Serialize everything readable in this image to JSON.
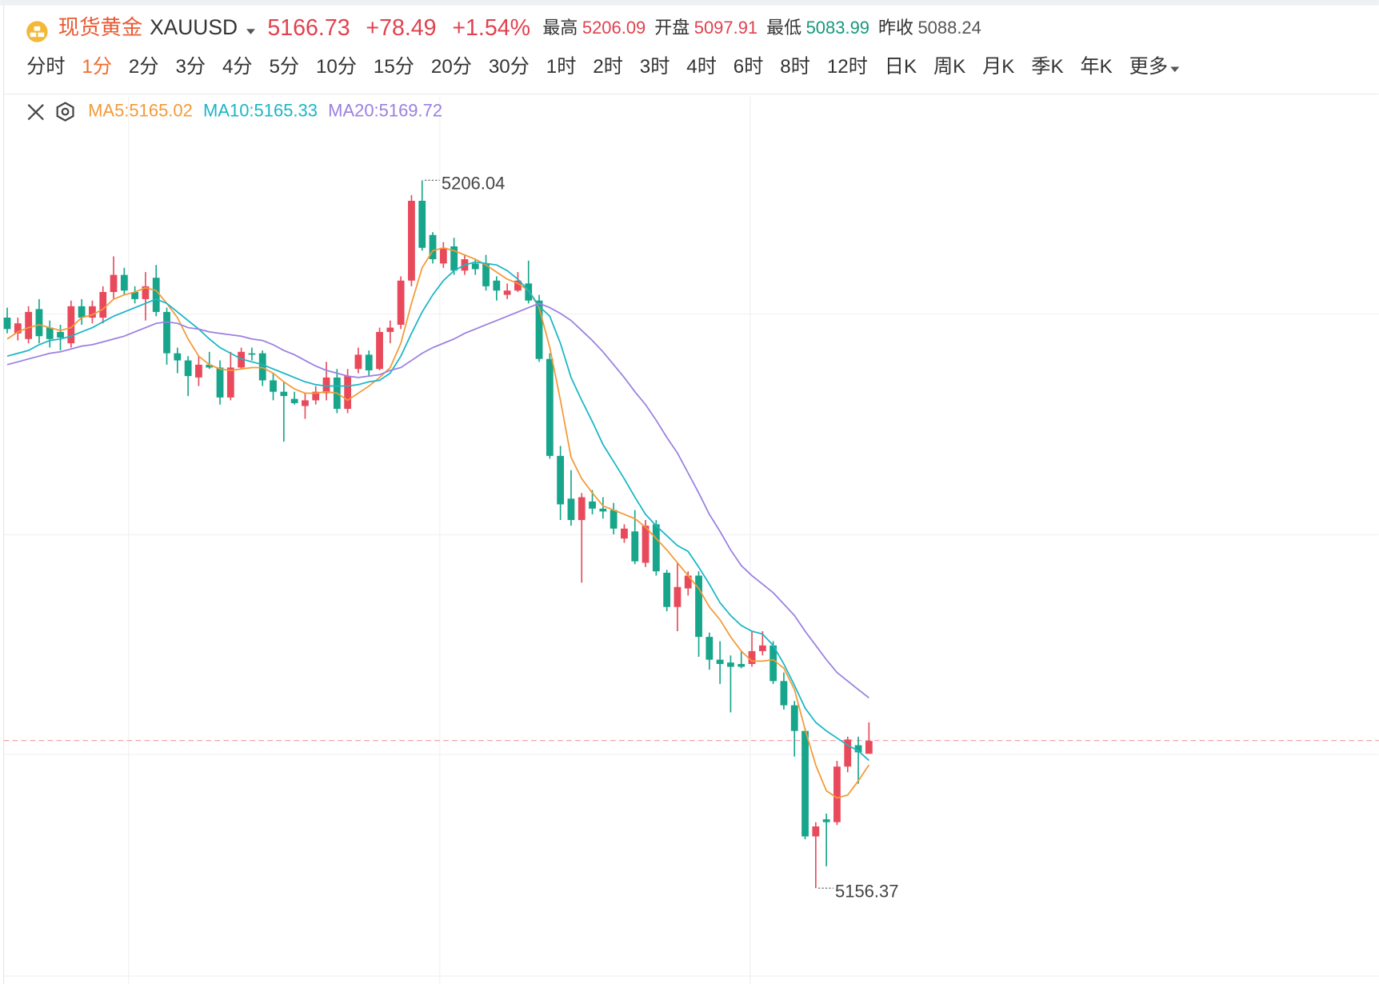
{
  "header": {
    "name": "现货黄金",
    "symbol": "XAUUSD",
    "price": 5166.73,
    "change": "+78.49",
    "change_pct": "+1.54%",
    "stats": [
      {
        "label": "最高",
        "value": 5206.09,
        "color": "#e0424f"
      },
      {
        "label": "开盘",
        "value": 5097.91,
        "color": "#e0424f"
      },
      {
        "label": "最低",
        "value": 5083.99,
        "color": "#16987c"
      },
      {
        "label": "昨收",
        "value": 5088.24,
        "color": "#555555"
      }
    ]
  },
  "tabs": [
    "分时",
    "1分",
    "2分",
    "3分",
    "4分",
    "5分",
    "10分",
    "15分",
    "20分",
    "30分",
    "1时",
    "2时",
    "3时",
    "4时",
    "6时",
    "8时",
    "12时",
    "日K",
    "周K",
    "月K",
    "季K",
    "年K",
    "更多"
  ],
  "active_tab": 1,
  "chart_data": {
    "type": "candlestick",
    "up_color": "#e84a5b",
    "down_color": "#17a58b",
    "legend_separator": ":",
    "high_label": 5206.04,
    "low_label": 5156.37,
    "candles": [
      [
        5196.4,
        5197.1,
        5195.3,
        5195.6
      ],
      [
        5195.3,
        5196.4,
        5194.8,
        5196.0
      ],
      [
        5194.9,
        5197.2,
        5194.6,
        5196.8
      ],
      [
        5197.0,
        5197.7,
        5194.6,
        5195.1
      ],
      [
        5195.7,
        5196.2,
        5194.3,
        5194.9
      ],
      [
        5195.4,
        5195.9,
        5194.1,
        5195.0
      ],
      [
        5194.6,
        5197.6,
        5194.3,
        5197.2
      ],
      [
        5197.2,
        5197.7,
        5195.9,
        5196.4
      ],
      [
        5196.4,
        5197.6,
        5196.0,
        5197.2
      ],
      [
        5196.4,
        5198.6,
        5196.0,
        5198.2
      ],
      [
        5198.2,
        5200.7,
        5197.7,
        5199.4
      ],
      [
        5199.4,
        5199.9,
        5198.0,
        5198.3
      ],
      [
        5198.2,
        5198.6,
        5197.4,
        5197.7
      ],
      [
        5197.7,
        5199.6,
        5196.2,
        5198.6
      ],
      [
        5199.2,
        5200.1,
        5196.5,
        5196.8
      ],
      [
        5196.8,
        5197.1,
        5193.1,
        5193.9
      ],
      [
        5193.9,
        5194.3,
        5192.5,
        5193.4
      ],
      [
        5193.4,
        5193.7,
        5190.9,
        5192.3
      ],
      [
        5192.2,
        5193.7,
        5191.6,
        5193.1
      ],
      [
        5193.1,
        5194.0,
        5192.8,
        5192.9
      ],
      [
        5192.9,
        5193.4,
        5190.3,
        5190.8
      ],
      [
        5190.8,
        5194.0,
        5190.6,
        5192.9
      ],
      [
        5192.9,
        5194.3,
        5192.8,
        5194.0
      ],
      [
        5193.9,
        5194.3,
        5193.4,
        5193.8
      ],
      [
        5193.9,
        5194.1,
        5191.6,
        5192.0
      ],
      [
        5192.0,
        5192.5,
        5190.6,
        5191.2
      ],
      [
        5191.2,
        5191.9,
        5187.7,
        5190.9
      ],
      [
        5190.7,
        5191.2,
        5190.3,
        5190.4
      ],
      [
        5190.2,
        5191.1,
        5189.3,
        5190.6
      ],
      [
        5190.6,
        5191.6,
        5190.3,
        5191.2
      ],
      [
        5191.1,
        5193.3,
        5190.6,
        5192.2
      ],
      [
        5192.2,
        5192.8,
        5189.7,
        5190.0
      ],
      [
        5190.0,
        5192.8,
        5189.7,
        5192.3
      ],
      [
        5192.8,
        5194.3,
        5192.5,
        5193.8
      ],
      [
        5193.8,
        5194.1,
        5192.3,
        5192.7
      ],
      [
        5192.8,
        5195.7,
        5192.7,
        5195.4
      ],
      [
        5195.4,
        5196.2,
        5194.6,
        5195.7
      ],
      [
        5195.9,
        5199.3,
        5195.6,
        5199.0
      ],
      [
        5199.0,
        5205.0,
        5198.6,
        5204.6
      ],
      [
        5204.6,
        5206.04,
        5201.1,
        5201.3
      ],
      [
        5202.2,
        5202.4,
        5200.2,
        5200.5
      ],
      [
        5200.2,
        5201.7,
        5199.9,
        5201.3
      ],
      [
        5201.4,
        5202.0,
        5199.4,
        5199.7
      ],
      [
        5199.7,
        5200.8,
        5199.4,
        5200.5
      ],
      [
        5200.2,
        5200.5,
        5199.4,
        5199.8
      ],
      [
        5200.2,
        5200.8,
        5198.3,
        5198.6
      ],
      [
        5199.0,
        5199.3,
        5197.6,
        5198.3
      ],
      [
        5198.0,
        5198.8,
        5197.7,
        5198.3
      ],
      [
        5198.3,
        5199.6,
        5198.2,
        5199.0
      ],
      [
        5198.8,
        5200.4,
        5197.4,
        5197.6
      ],
      [
        5197.6,
        5198.0,
        5193.3,
        5193.5
      ],
      [
        5193.5,
        5193.9,
        5186.5,
        5186.7
      ],
      [
        5186.7,
        5187.4,
        5182.2,
        5183.3
      ],
      [
        5183.7,
        5185.7,
        5181.8,
        5182.2
      ],
      [
        5182.2,
        5184.1,
        5177.8,
        5183.8
      ],
      [
        5183.5,
        5184.3,
        5182.6,
        5183.0
      ],
      [
        5183.0,
        5183.8,
        5182.3,
        5182.8
      ],
      [
        5182.9,
        5183.4,
        5181.2,
        5181.6
      ],
      [
        5180.9,
        5181.9,
        5180.6,
        5181.6
      ],
      [
        5181.4,
        5182.9,
        5179.1,
        5179.3
      ],
      [
        5179.2,
        5182.2,
        5178.9,
        5181.8
      ],
      [
        5181.9,
        5182.2,
        5178.3,
        5178.6
      ],
      [
        5178.5,
        5178.7,
        5175.8,
        5176.1
      ],
      [
        5176.1,
        5179.2,
        5174.4,
        5177.5
      ],
      [
        5177.4,
        5178.6,
        5176.9,
        5178.3
      ],
      [
        5178.3,
        5178.6,
        5172.6,
        5174.0
      ],
      [
        5174.0,
        5174.3,
        5171.7,
        5172.4
      ],
      [
        5172.4,
        5173.7,
        5170.7,
        5172.1
      ],
      [
        5172.2,
        5172.7,
        5168.7,
        5171.9
      ],
      [
        5172.1,
        5173.0,
        5171.8,
        5171.9
      ],
      [
        5172.1,
        5174.4,
        5171.9,
        5173.0
      ],
      [
        5173.0,
        5174.4,
        5172.7,
        5173.4
      ],
      [
        5173.4,
        5173.7,
        5170.7,
        5170.9
      ],
      [
        5170.9,
        5171.5,
        5168.9,
        5169.2
      ],
      [
        5169.2,
        5169.5,
        5165.6,
        5167.4
      ],
      [
        5167.4,
        5167.6,
        5159.8,
        5160.0
      ],
      [
        5160.0,
        5161.0,
        5156.37,
        5160.7
      ],
      [
        5161.2,
        5161.6,
        5157.9,
        5161.0
      ],
      [
        5161.0,
        5165.3,
        5160.8,
        5164.9
      ],
      [
        5164.9,
        5167.0,
        5164.5,
        5166.8
      ],
      [
        5166.4,
        5167.0,
        5163.7,
        5165.9
      ],
      [
        5165.8,
        5168.0,
        5165.8,
        5166.7
      ]
    ],
    "series": [
      {
        "name": "MA5",
        "color": "#f39a38",
        "values": [
          5194.9,
          5195.4,
          5195.7,
          5195.9,
          5195.7,
          5195.5,
          5195.7,
          5196.4,
          5196.6,
          5197.0,
          5197.7,
          5198.0,
          5198.2,
          5198.5,
          5198.3,
          5197.4,
          5196.4,
          5194.9,
          5193.7,
          5193.1,
          5192.8,
          5192.7,
          5192.8,
          5192.9,
          5192.9,
          5192.5,
          5191.9,
          5191.4,
          5191.1,
          5191.1,
          5191.2,
          5191.1,
          5190.6,
          5191.1,
          5191.6,
          5192.2,
          5192.9,
          5194.6,
          5197.4,
          5199.9,
          5201.1,
          5201.3,
          5201.1,
          5200.8,
          5200.5,
          5200.1,
          5199.6,
          5199.1,
          5198.8,
          5198.3,
          5197.1,
          5194.3,
          5190.6,
          5186.6,
          5185.1,
          5184.1,
          5183.2,
          5182.9,
          5182.6,
          5182.3,
          5181.7,
          5180.9,
          5180.1,
          5179.2,
          5178.3,
          5177.4,
          5176.1,
          5175.2,
          5174.0,
          5173.0,
          5172.3,
          5172.3,
          5172.4,
          5171.8,
          5170.3,
          5167.5,
          5165.0,
          5163.2,
          5162.7,
          5162.9,
          5163.9,
          5165.02
        ]
      },
      {
        "name": "MA10",
        "color": "#1ab6c6",
        "values": [
          5193.7,
          5193.9,
          5194.1,
          5194.5,
          5194.8,
          5194.9,
          5195.1,
          5195.4,
          5195.7,
          5196.1,
          5196.5,
          5196.8,
          5197.1,
          5197.4,
          5197.7,
          5197.4,
          5196.8,
          5196.2,
          5195.6,
          5194.9,
          5194.3,
          5193.9,
          5193.5,
          5193.3,
          5193.1,
          5192.8,
          5192.5,
          5192.2,
          5191.9,
          5191.7,
          5191.6,
          5191.6,
          5191.6,
          5191.7,
          5191.9,
          5192.0,
          5192.5,
          5193.7,
          5195.3,
          5196.8,
          5198.0,
          5199.0,
          5199.7,
          5200.1,
          5200.3,
          5200.2,
          5200.1,
          5199.7,
          5199.1,
          5198.3,
          5197.2,
          5196.5,
          5194.6,
          5192.2,
          5190.6,
          5189.1,
          5187.5,
          5186.3,
          5185.1,
          5183.8,
          5182.6,
          5181.8,
          5181.1,
          5180.4,
          5180.0,
          5178.9,
          5177.7,
          5176.4,
          5175.5,
          5174.8,
          5174.4,
          5174.2,
          5173.4,
          5172.1,
          5170.6,
          5169.0,
          5168.0,
          5167.4,
          5166.9,
          5166.4,
          5166.0,
          5165.33
        ]
      },
      {
        "name": "MA20",
        "color": "#9b80e0",
        "values": [
          5193.1,
          5193.3,
          5193.5,
          5193.7,
          5193.9,
          5194.0,
          5194.2,
          5194.4,
          5194.5,
          5194.7,
          5194.9,
          5195.1,
          5195.4,
          5195.7,
          5196.0,
          5196.1,
          5196.0,
          5195.7,
          5195.6,
          5195.4,
          5195.3,
          5195.2,
          5195.1,
          5194.9,
          5194.8,
          5194.5,
          5194.1,
          5193.8,
          5193.4,
          5193.0,
          5192.7,
          5192.5,
          5192.3,
          5192.2,
          5192.3,
          5192.4,
          5192.7,
          5192.9,
          5193.4,
          5193.9,
          5194.3,
          5194.6,
          5194.9,
          5195.3,
          5195.6,
          5195.9,
          5196.2,
          5196.5,
          5196.8,
          5197.1,
          5197.4,
          5197.1,
          5196.7,
          5196.2,
          5195.5,
          5194.8,
          5194.0,
          5193.1,
          5192.2,
          5191.2,
          5190.3,
          5189.2,
          5188.0,
          5186.9,
          5185.5,
          5184.1,
          5182.6,
          5181.4,
          5180.1,
          5179.0,
          5178.3,
          5177.7,
          5177.1,
          5176.3,
          5175.5,
          5174.4,
          5173.4,
          5172.4,
          5171.5,
          5170.9,
          5170.3,
          5169.72
        ]
      }
    ]
  }
}
